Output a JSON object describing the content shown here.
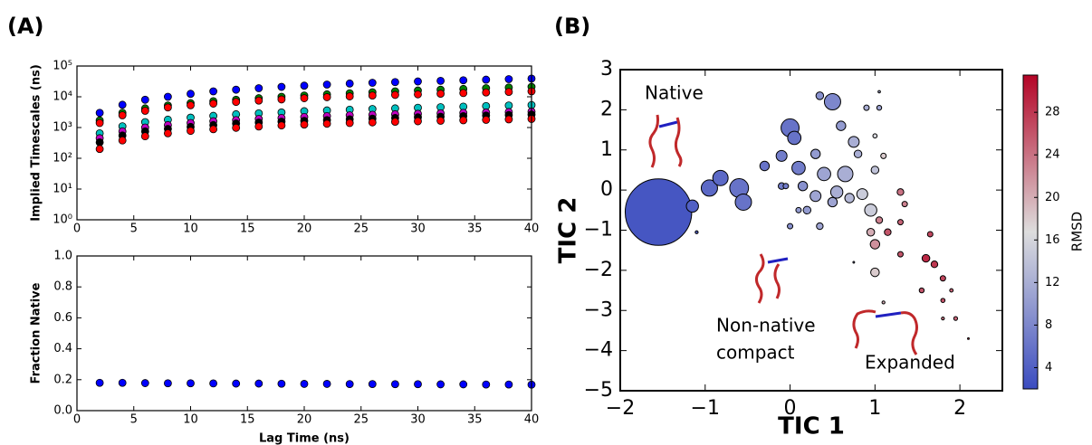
{
  "chart_data": [
    {
      "type": "scatter",
      "label": "(A)",
      "ylabel": "Implied Timescales (ns)",
      "logy": true,
      "x": [
        2,
        4,
        6,
        8,
        10,
        12,
        14,
        16,
        18,
        20,
        22,
        24,
        26,
        28,
        30,
        32,
        34,
        36,
        38,
        40
      ],
      "xlim": [
        0,
        40
      ],
      "xticks": [
        0,
        5,
        10,
        15,
        20,
        25,
        30,
        35,
        40
      ],
      "ylim": [
        1,
        100000
      ],
      "yticks": [
        {
          "value": 1,
          "label": "10⁰"
        },
        {
          "value": 10,
          "label": "10¹"
        },
        {
          "value": 100,
          "label": "10²"
        },
        {
          "value": 1000,
          "label": "10³"
        },
        {
          "value": 10000,
          "label": "10⁴"
        },
        {
          "value": 100000,
          "label": "10⁵"
        }
      ],
      "series": [
        {
          "color": "#0000ff",
          "values": [
            3000,
            5500,
            8000,
            10000,
            12500,
            15000,
            17000,
            19000,
            21000,
            23000,
            25000,
            27000,
            28500,
            30000,
            31500,
            33000,
            34500,
            36000,
            37500,
            39000
          ]
        },
        {
          "color": "#008000",
          "values": [
            1700,
            3000,
            4200,
            5200,
            6200,
            7200,
            8000,
            9000,
            10000,
            11000,
            12000,
            13000,
            14000,
            15000,
            16000,
            17000,
            18000,
            19000,
            20000,
            21000
          ]
        },
        {
          "color": "#ff0000",
          "values": [
            1400,
            2500,
            3500,
            4500,
            5300,
            6000,
            6800,
            7500,
            8200,
            9000,
            9700,
            10300,
            11000,
            11500,
            12000,
            12600,
            13200,
            13800,
            14400,
            15000
          ]
        },
        {
          "color": "#00bfbf",
          "values": [
            650,
            1100,
            1500,
            1800,
            2100,
            2400,
            2700,
            2900,
            3100,
            3400,
            3600,
            3800,
            4000,
            4200,
            4400,
            4600,
            4800,
            5000,
            5200,
            5400
          ]
        },
        {
          "color": "#bf00bf",
          "values": [
            450,
            750,
            1000,
            1200,
            1400,
            1600,
            1750,
            1900,
            2050,
            2200,
            2350,
            2500,
            2600,
            2700,
            2800,
            2900,
            3000,
            3100,
            3200,
            3300
          ]
        },
        {
          "color": "#000000",
          "values": [
            330,
            550,
            750,
            900,
            1050,
            1200,
            1350,
            1450,
            1550,
            1650,
            1750,
            1850,
            1950,
            2050,
            2150,
            2250,
            2350,
            2450,
            2550,
            2650
          ]
        },
        {
          "color": "#ff0000",
          "values": [
            200,
            380,
            520,
            650,
            780,
            880,
            980,
            1080,
            1170,
            1250,
            1330,
            1400,
            1470,
            1540,
            1600,
            1660,
            1720,
            1780,
            1840,
            1900
          ]
        }
      ]
    },
    {
      "type": "scatter",
      "ylabel": "Fraction Native",
      "xlabel": "Lag Time (ns)",
      "x": [
        2,
        4,
        6,
        8,
        10,
        12,
        14,
        16,
        18,
        20,
        22,
        24,
        26,
        28,
        30,
        32,
        34,
        36,
        38,
        40
      ],
      "xlim": [
        0,
        40
      ],
      "xticks": [
        0,
        5,
        10,
        15,
        20,
        25,
        30,
        35,
        40
      ],
      "ylim": [
        0,
        1
      ],
      "yticks": [
        {
          "value": 0,
          "label": "0.0"
        },
        0.2,
        0.4,
        0.6,
        0.8,
        {
          "value": 1,
          "label": "1.0"
        }
      ],
      "series": [
        {
          "color": "#0000ff",
          "values": [
            0.18,
            0.18,
            0.178,
            0.177,
            0.177,
            0.176,
            0.175,
            0.175,
            0.174,
            0.173,
            0.173,
            0.172,
            0.172,
            0.171,
            0.171,
            0.17,
            0.17,
            0.169,
            0.169,
            0.168
          ]
        }
      ]
    },
    {
      "type": "bubble",
      "label": "(B)",
      "xlabel": "TIC 1",
      "ylabel": "TIC 2",
      "xlim": [
        -2,
        2.5
      ],
      "xticks": [
        {
          "value": -2,
          "label": "−2"
        },
        {
          "value": -1,
          "label": "−1"
        },
        0,
        1,
        2
      ],
      "ylim": [
        -5,
        3
      ],
      "yticks": [
        {
          "value": -5,
          "label": "−5"
        },
        {
          "value": -4,
          "label": "−4"
        },
        {
          "value": -3,
          "label": "−3"
        },
        {
          "value": -2,
          "label": "−2"
        },
        {
          "value": -1,
          "label": "−1"
        },
        0,
        1,
        2,
        3
      ],
      "annotations": [
        "Native",
        "Non-native",
        "compact",
        "Expanded"
      ],
      "colormap": [
        "#3b4cc0",
        "#dddddd",
        "#b40426"
      ],
      "colorbar": {
        "label": "RMSD",
        "lim": [
          2,
          31.5
        ],
        "ticks": [
          4,
          8,
          12,
          16,
          20,
          24,
          28
        ]
      },
      "x": [
        -1.55,
        -1.15,
        -1.1,
        -0.95,
        -0.82,
        -0.6,
        -0.55,
        -0.3,
        -0.1,
        -0.05,
        0,
        0.05,
        -0.1,
        0.1,
        0.15,
        0.3,
        0.3,
        0.5,
        0.35,
        0.6,
        0.65,
        0.55,
        0.7,
        0.75,
        0.8,
        0.85,
        0.95,
        0.4,
        0.2,
        0,
        0.35,
        0.5,
        0.9,
        1.05,
        1.05,
        1,
        1.1,
        1,
        1,
        0.95,
        1.05,
        1.3,
        1.35,
        1.3,
        1,
        1.15,
        1.3,
        1.6,
        1.7,
        1.65,
        1.8,
        1.8,
        1.9,
        1.95,
        1.8,
        1.55,
        2.1,
        0.75,
        1.1,
        0.1
      ],
      "y": [
        -0.55,
        -0.4,
        -1.05,
        0.05,
        0.3,
        0.05,
        -0.3,
        0.6,
        0.1,
        0.1,
        1.55,
        1.3,
        0.85,
        0.55,
        0.1,
        0.9,
        -0.15,
        2.2,
        2.35,
        1.6,
        0.4,
        -0.05,
        -0.2,
        1.2,
        0.9,
        -0.1,
        -0.5,
        0.4,
        -0.5,
        -0.9,
        -0.9,
        -0.3,
        2.05,
        2.45,
        2.05,
        1.35,
        0.85,
        0.5,
        -1.35,
        -1.05,
        -0.75,
        -0.05,
        -0.35,
        -0.8,
        -2.05,
        -1.05,
        -1.6,
        -1.7,
        -1.85,
        -1.1,
        -2.2,
        -2.75,
        -2.5,
        -3.2,
        -3.2,
        -2.5,
        -3.7,
        -1.8,
        -2.8,
        -0.5
      ],
      "sizes": [
        150,
        5,
        0.3,
        9,
        8,
        12,
        9,
        3,
        1.5,
        1,
        11,
        6,
        4,
        6,
        3,
        3,
        4,
        9,
        2,
        3,
        8,
        5,
        3,
        4,
        2,
        4,
        5,
        6,
        2,
        1,
        1.5,
        3,
        1,
        0.2,
        0.8,
        0.6,
        1,
        2,
        3,
        2,
        1.5,
        1.5,
        1,
        1,
        2.5,
        1.5,
        1,
        2,
        1.5,
        1,
        1,
        0.6,
        0.4,
        0.5,
        0.3,
        0.8,
        0.1,
        0.1,
        0.3,
        1
      ],
      "rmsd": [
        3,
        4,
        4,
        5,
        5,
        6,
        6,
        6,
        7,
        7,
        6,
        6,
        7,
        7,
        9,
        10,
        11,
        8,
        9,
        10,
        12,
        12,
        13,
        12,
        12,
        15,
        15,
        11,
        10,
        9,
        11,
        11,
        12,
        12,
        11,
        16,
        18,
        14,
        22,
        20,
        23,
        24,
        23,
        25,
        18,
        26,
        26,
        29,
        28,
        27,
        27,
        26,
        25,
        25,
        24,
        26,
        30,
        10,
        20,
        10
      ]
    }
  ]
}
